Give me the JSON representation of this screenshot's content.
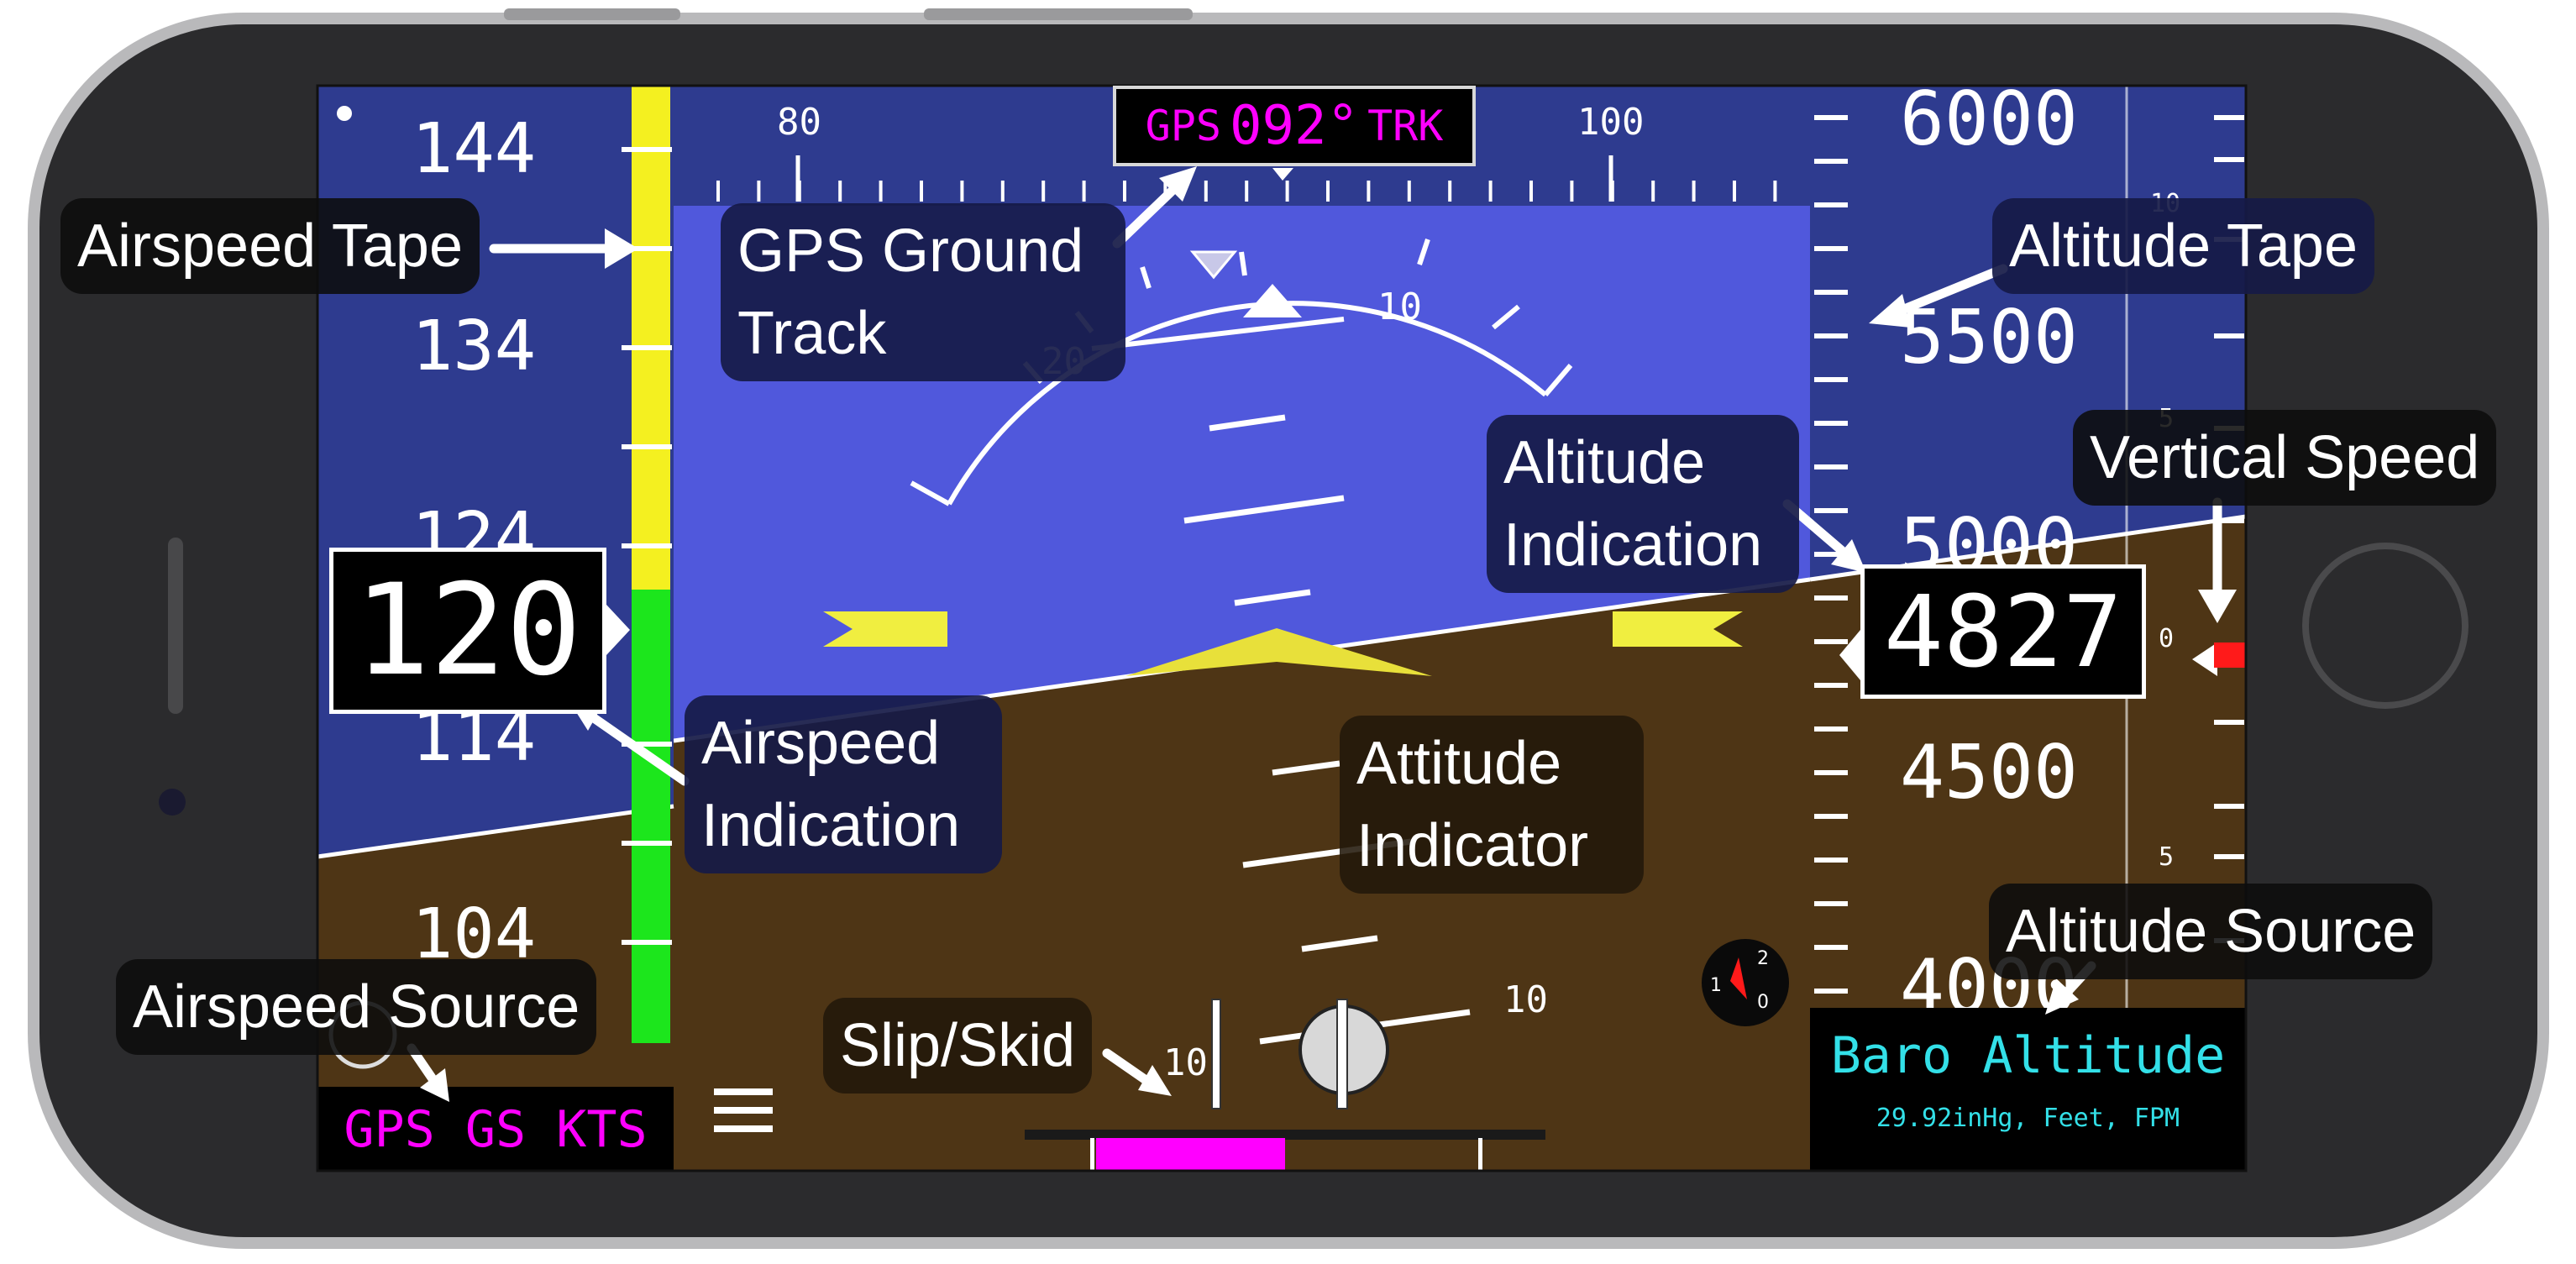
{
  "airspeed": {
    "tape_ticks": [
      "144",
      "134",
      "124",
      "114",
      "104"
    ],
    "current": "120",
    "source": "GPS GS KTS"
  },
  "heading": {
    "tape_ticks": [
      "80",
      "100"
    ],
    "track_prefix": "GPS",
    "track_value": "092°",
    "track_suffix": "TRK"
  },
  "attitude": {
    "roll_scale_labels": [
      "10",
      "20"
    ],
    "pitch_labels": [
      "10",
      "10"
    ]
  },
  "altitude": {
    "tape_ticks": [
      "6000",
      "5500",
      "5000",
      "4500",
      "4000"
    ],
    "current": "4827",
    "source": "Baro Altitude",
    "units": "29.92inHg, Feet, FPM"
  },
  "vertical_speed": {
    "scale_labels": [
      "10",
      "5",
      "0",
      "5"
    ]
  },
  "compass_mini": {
    "labels": [
      "1",
      "2",
      "0"
    ]
  },
  "callouts": {
    "airspeed_tape": "Airspeed Tape",
    "gps_ground_track": "GPS Ground Track",
    "altitude_tape": "Altitude Tape",
    "vertical_speed": "Vertical Speed",
    "altitude_indication": "Altitude Indication",
    "airspeed_indication": "Airspeed Indication",
    "attitude_indicator": "Attitude Indicator",
    "airspeed_source": "Airspeed Source",
    "altitude_source": "Altitude Source",
    "slip_skid": "Slip/Skid"
  },
  "colors": {
    "sky": "#5058dc",
    "ground": "#4e3515",
    "tape_bg": "#2e3b8f",
    "magenta": "#ff00ff",
    "cyan": "#33e0e8",
    "yellow": "#f4f020",
    "green": "#1ce61c"
  }
}
